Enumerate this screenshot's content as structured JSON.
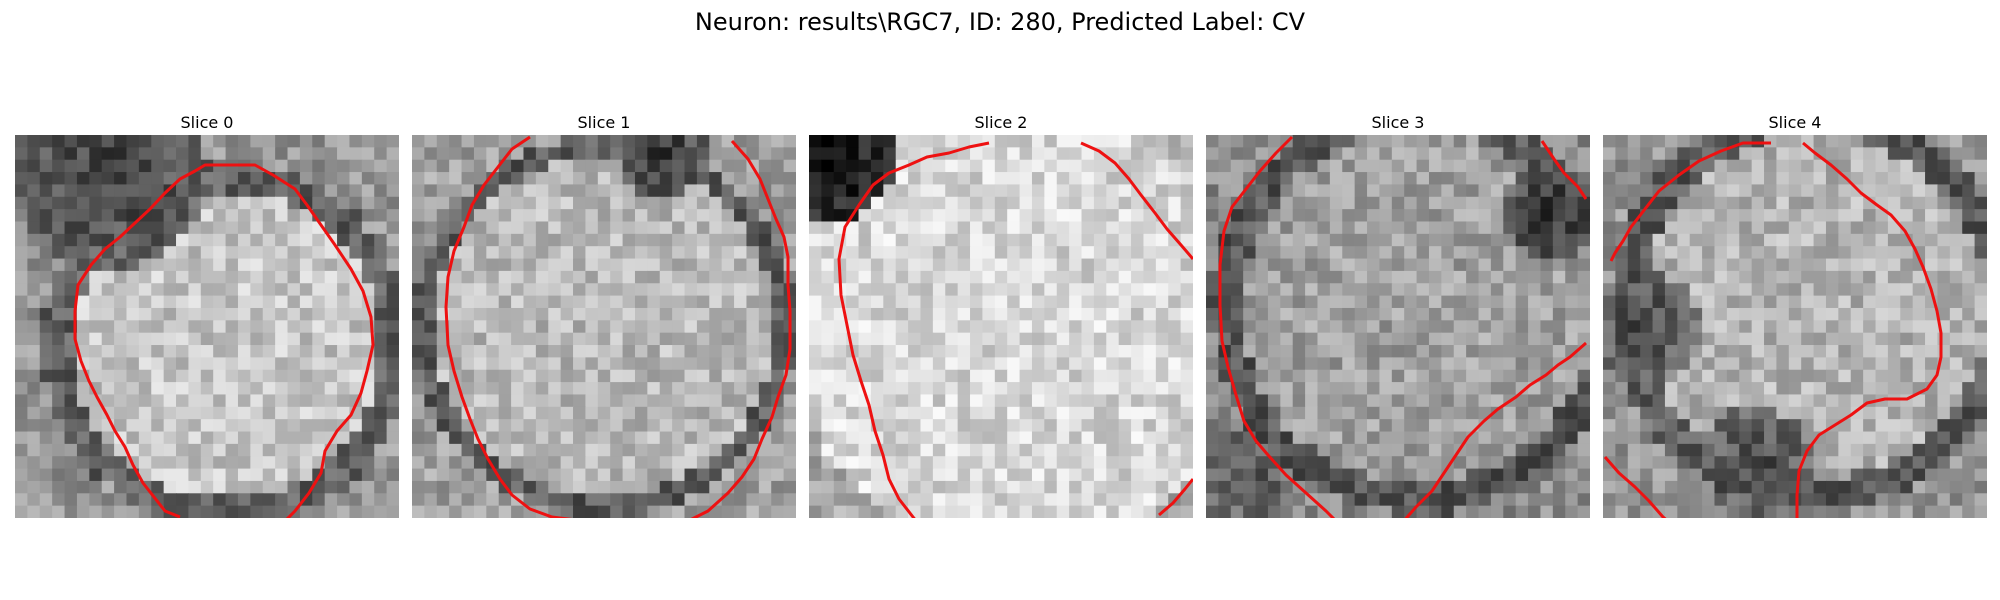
{
  "figure": {
    "title": "Neuron: results\\RGC7, ID: 280, Predicted Label: CV"
  },
  "panels": [
    {
      "title": "Slice 0",
      "contour_color": "#ee1111",
      "contours": [
        [
          [
            205,
            30
          ],
          [
            190,
            30
          ],
          [
            180,
            36
          ],
          [
            165,
            44
          ],
          [
            150,
            58
          ],
          [
            135,
            74
          ],
          [
            120,
            88
          ],
          [
            105,
            102
          ],
          [
            90,
            114
          ],
          [
            76,
            130
          ],
          [
            63,
            150
          ],
          [
            60,
            176
          ],
          [
            60,
            204
          ],
          [
            66,
            226
          ],
          [
            74,
            246
          ],
          [
            82,
            262
          ],
          [
            92,
            280
          ],
          [
            100,
            296
          ],
          [
            110,
            312
          ],
          [
            118,
            330
          ],
          [
            128,
            348
          ],
          [
            150,
            376
          ],
          [
            165,
            382
          ]
        ],
        [
          [
            205,
            30
          ],
          [
            240,
            30
          ],
          [
            258,
            40
          ],
          [
            280,
            54
          ],
          [
            292,
            70
          ],
          [
            306,
            90
          ],
          [
            320,
            110
          ],
          [
            336,
            134
          ],
          [
            348,
            156
          ],
          [
            356,
            182
          ],
          [
            358,
            210
          ],
          [
            352,
            236
          ],
          [
            346,
            258
          ],
          [
            336,
            280
          ],
          [
            322,
            296
          ],
          [
            310,
            316
          ],
          [
            306,
            338
          ],
          [
            294,
            358
          ],
          [
            280,
            376
          ],
          [
            266,
            390
          ]
        ]
      ]
    },
    {
      "title": "Slice 1",
      "contour_color": "#ee1111",
      "contours": [
        [
          [
            118,
            2
          ],
          [
            100,
            14
          ],
          [
            86,
            32
          ],
          [
            72,
            50
          ],
          [
            60,
            70
          ],
          [
            52,
            92
          ],
          [
            42,
            116
          ],
          [
            36,
            142
          ],
          [
            34,
            172
          ],
          [
            36,
            210
          ],
          [
            42,
            236
          ],
          [
            50,
            262
          ],
          [
            58,
            284
          ],
          [
            66,
            304
          ],
          [
            76,
            324
          ],
          [
            88,
            344
          ],
          [
            100,
            360
          ],
          [
            118,
            374
          ],
          [
            140,
            382
          ],
          [
            172,
            386
          ]
        ],
        [
          [
            320,
            6
          ],
          [
            336,
            24
          ],
          [
            348,
            44
          ],
          [
            356,
            64
          ],
          [
            364,
            84
          ],
          [
            372,
            102
          ],
          [
            376,
            122
          ],
          [
            376,
            150
          ],
          [
            378,
            176
          ],
          [
            378,
            214
          ],
          [
            374,
            240
          ],
          [
            366,
            262
          ],
          [
            360,
            282
          ],
          [
            350,
            304
          ],
          [
            342,
            324
          ],
          [
            330,
            342
          ],
          [
            316,
            358
          ],
          [
            296,
            376
          ],
          [
            268,
            390
          ]
        ]
      ]
    },
    {
      "title": "Slice 2",
      "contour_color": "#ee1111",
      "contours": [
        [
          [
            180,
            8
          ],
          [
            160,
            12
          ],
          [
            140,
            18
          ],
          [
            118,
            22
          ],
          [
            100,
            30
          ],
          [
            80,
            38
          ],
          [
            64,
            50
          ],
          [
            50,
            70
          ],
          [
            36,
            92
          ],
          [
            30,
            124
          ],
          [
            32,
            160
          ],
          [
            38,
            190
          ],
          [
            44,
            220
          ],
          [
            52,
            246
          ],
          [
            60,
            270
          ],
          [
            66,
            296
          ],
          [
            74,
            320
          ],
          [
            80,
            344
          ],
          [
            90,
            364
          ],
          [
            104,
            382
          ],
          [
            112,
            392
          ]
        ],
        [
          [
            272,
            8
          ],
          [
            290,
            16
          ],
          [
            306,
            28
          ],
          [
            320,
            44
          ],
          [
            332,
            60
          ],
          [
            346,
            78
          ],
          [
            358,
            94
          ],
          [
            372,
            110
          ],
          [
            384,
            124
          ]
        ],
        [
          [
            350,
            380
          ],
          [
            364,
            368
          ],
          [
            376,
            354
          ],
          [
            384,
            344
          ]
        ]
      ]
    },
    {
      "title": "Slice 3",
      "contour_color": "#ee1111",
      "contours": [
        [
          [
            86,
            2
          ],
          [
            70,
            18
          ],
          [
            54,
            36
          ],
          [
            40,
            54
          ],
          [
            26,
            72
          ],
          [
            18,
            96
          ],
          [
            14,
            130
          ],
          [
            14,
            170
          ],
          [
            16,
            206
          ],
          [
            22,
            232
          ],
          [
            30,
            260
          ],
          [
            38,
            286
          ],
          [
            50,
            306
          ],
          [
            62,
            320
          ],
          [
            80,
            340
          ],
          [
            100,
            358
          ],
          [
            120,
            376
          ],
          [
            132,
            388
          ]
        ],
        [
          [
            132,
            388
          ],
          [
            196,
            388
          ],
          [
            210,
            372
          ],
          [
            226,
            356
          ],
          [
            238,
            338
          ],
          [
            250,
            320
          ],
          [
            262,
            302
          ],
          [
            278,
            286
          ],
          [
            292,
            274
          ],
          [
            310,
            262
          ],
          [
            324,
            250
          ],
          [
            340,
            240
          ],
          [
            352,
            230
          ],
          [
            364,
            222
          ],
          [
            380,
            208
          ]
        ],
        [
          [
            336,
            6
          ],
          [
            348,
            24
          ],
          [
            358,
            38
          ],
          [
            372,
            52
          ],
          [
            380,
            64
          ]
        ]
      ]
    },
    {
      "title": "Slice 4",
      "contour_color": "#ee1111",
      "contours": [
        [
          [
            168,
            8
          ],
          [
            140,
            8
          ],
          [
            118,
            16
          ],
          [
            96,
            26
          ],
          [
            76,
            40
          ],
          [
            56,
            56
          ],
          [
            42,
            74
          ],
          [
            28,
            92
          ],
          [
            20,
            106
          ],
          [
            12,
            118
          ],
          [
            8,
            126
          ]
        ],
        [
          [
            200,
            8
          ],
          [
            212,
            18
          ],
          [
            228,
            30
          ],
          [
            244,
            44
          ],
          [
            258,
            58
          ],
          [
            274,
            70
          ],
          [
            288,
            80
          ],
          [
            302,
            96
          ],
          [
            312,
            114
          ],
          [
            320,
            132
          ],
          [
            328,
            154
          ],
          [
            334,
            176
          ],
          [
            338,
            198
          ],
          [
            338,
            222
          ],
          [
            334,
            240
          ],
          [
            324,
            254
          ],
          [
            304,
            264
          ],
          [
            282,
            264
          ],
          [
            264,
            268
          ],
          [
            248,
            280
          ],
          [
            232,
            290
          ],
          [
            216,
            300
          ],
          [
            204,
            316
          ],
          [
            196,
            336
          ],
          [
            194,
            360
          ],
          [
            194,
            384
          ],
          [
            184,
            392
          ]
        ],
        [
          [
            2,
            322
          ],
          [
            16,
            338
          ],
          [
            32,
            352
          ],
          [
            46,
            366
          ],
          [
            60,
            382
          ],
          [
            72,
            392
          ]
        ]
      ]
    }
  ]
}
